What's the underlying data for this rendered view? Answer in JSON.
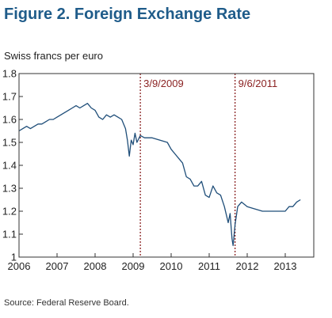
{
  "title": "Figure 2. Foreign Exchange Rate",
  "ylabel": "Swiss francs per euro",
  "source": "Source: Federal Reserve Board.",
  "colors": {
    "title": "#1f5c8a",
    "line": "#1f4e79",
    "annotation": "#8b2323"
  },
  "chart_data": {
    "type": "line",
    "title": "Figure 2. Foreign Exchange Rate",
    "xlabel": "",
    "ylabel": "Swiss francs per euro",
    "xlim": [
      2006,
      2013.75
    ],
    "ylim": [
      1.0,
      1.8
    ],
    "x_ticks": [
      "2006",
      "2007",
      "2008",
      "2009",
      "2010",
      "2011",
      "2012",
      "2013"
    ],
    "y_ticks": [
      "1",
      "1.1",
      "1.2",
      "1.3",
      "1.4",
      "1.5",
      "1.6",
      "1.7",
      "1.8"
    ],
    "grid": false,
    "legend": "none",
    "annotations": [
      {
        "label": "3/9/2009",
        "x": 2009.19
      },
      {
        "label": "9/6/2011",
        "x": 2011.68
      }
    ],
    "series": [
      {
        "x": [
          2006.0,
          2006.1,
          2006.2,
          2006.3,
          2006.4,
          2006.5,
          2006.6,
          2006.7,
          2006.8,
          2006.9,
          2007.0,
          2007.1,
          2007.2,
          2007.3,
          2007.4,
          2007.5,
          2007.6,
          2007.7,
          2007.8,
          2007.9,
          2008.0,
          2008.1,
          2008.2,
          2008.3,
          2008.4,
          2008.5,
          2008.6,
          2008.7,
          2008.8,
          2008.85,
          2008.9,
          2008.95,
          2009.0,
          2009.05,
          2009.1,
          2009.19,
          2009.3,
          2009.5,
          2009.7,
          2009.9,
          2010.0,
          2010.1,
          2010.2,
          2010.3,
          2010.4,
          2010.5,
          2010.6,
          2010.7,
          2010.8,
          2010.9,
          2011.0,
          2011.1,
          2011.2,
          2011.3,
          2011.4,
          2011.5,
          2011.55,
          2011.6,
          2011.63,
          2011.68,
          2011.75,
          2011.85,
          2012.0,
          2012.2,
          2012.4,
          2012.6,
          2012.8,
          2013.0,
          2013.1,
          2013.2,
          2013.3,
          2013.4
        ],
        "y": [
          1.55,
          1.56,
          1.57,
          1.56,
          1.57,
          1.58,
          1.58,
          1.59,
          1.6,
          1.6,
          1.61,
          1.62,
          1.63,
          1.64,
          1.65,
          1.66,
          1.65,
          1.66,
          1.67,
          1.65,
          1.64,
          1.61,
          1.6,
          1.62,
          1.61,
          1.62,
          1.61,
          1.6,
          1.56,
          1.51,
          1.44,
          1.51,
          1.49,
          1.54,
          1.5,
          1.53,
          1.52,
          1.52,
          1.51,
          1.5,
          1.47,
          1.45,
          1.43,
          1.41,
          1.35,
          1.34,
          1.31,
          1.31,
          1.33,
          1.27,
          1.26,
          1.31,
          1.28,
          1.27,
          1.22,
          1.15,
          1.19,
          1.08,
          1.05,
          1.14,
          1.22,
          1.24,
          1.22,
          1.21,
          1.2,
          1.2,
          1.2,
          1.2,
          1.22,
          1.22,
          1.24,
          1.25
        ]
      }
    ]
  }
}
